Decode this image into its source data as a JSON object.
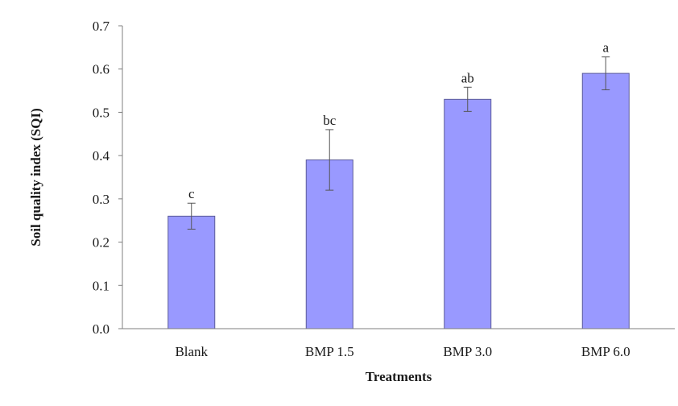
{
  "chart_data": {
    "type": "bar",
    "xlabel": "Treatments",
    "ylabel": "Soil quality index (SQI)",
    "ylim": [
      0,
      0.7
    ],
    "yticks": [
      "0.0",
      "0.1",
      "0.2",
      "0.3",
      "0.4",
      "0.5",
      "0.6",
      "0.7"
    ],
    "categories": [
      "Blank",
      "BMP 1.5",
      "BMP 3.0",
      "BMP 6.0"
    ],
    "values": [
      0.26,
      0.39,
      0.53,
      0.59
    ],
    "errors": [
      0.03,
      0.07,
      0.028,
      0.038
    ],
    "significance_labels": [
      "c",
      "bc",
      "ab",
      "a"
    ],
    "grid": false,
    "legend": "none",
    "bar_color": "#9999ff",
    "bar_edge_color": "#5a5a99"
  }
}
